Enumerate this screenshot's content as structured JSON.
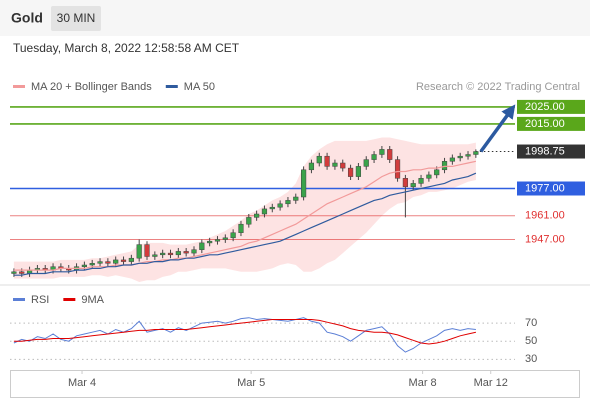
{
  "header": {
    "symbol": "Gold",
    "interval": "30 MIN",
    "timestamp": "Tuesday, March 8, 2022 12:58:58 AM CET"
  },
  "chart_data": [
    {
      "type": "candlestick",
      "note": "Research © 2022 Trading Central",
      "open": [
        1927,
        1928,
        1927,
        1929,
        1930,
        1929,
        1931,
        1930,
        1929,
        1931,
        1932,
        1933,
        1934,
        1933,
        1935,
        1934,
        1936,
        1944,
        1937,
        1938,
        1939,
        1938,
        1940,
        1939,
        1941,
        1945,
        1946,
        1947,
        1948,
        1951,
        1956,
        1960,
        1962,
        1965,
        1966,
        1968,
        1970,
        1972,
        1988,
        1992,
        1996,
        1990,
        1992,
        1989,
        1984,
        1990,
        1994,
        1997,
        2000,
        1994,
        1983,
        1978,
        1980,
        1983,
        1985,
        1988,
        1993,
        1995,
        1996,
        1997
      ],
      "high": [
        1930,
        1930,
        1931,
        1932,
        1932,
        1933,
        1933,
        1932,
        1933,
        1934,
        1935,
        1936,
        1936,
        1937,
        1937,
        1938,
        1947,
        1946,
        1940,
        1941,
        1941,
        1942,
        1942,
        1943,
        1947,
        1948,
        1949,
        1950,
        1953,
        1958,
        1962,
        1964,
        1967,
        1968,
        1970,
        1972,
        1974,
        1990,
        1994,
        1998,
        1998,
        1994,
        1994,
        1991,
        1992,
        1996,
        1999,
        2002,
        2002,
        1996,
        1985,
        1982,
        1985,
        1987,
        1990,
        1995,
        1997,
        1998,
        1999,
        2000
      ],
      "low": [
        1925,
        1925,
        1925,
        1927,
        1927,
        1927,
        1928,
        1927,
        1927,
        1929,
        1930,
        1931,
        1931,
        1931,
        1932,
        1932,
        1934,
        1935,
        1935,
        1936,
        1936,
        1936,
        1937,
        1937,
        1939,
        1943,
        1944,
        1945,
        1946,
        1949,
        1954,
        1958,
        1960,
        1963,
        1964,
        1966,
        1968,
        1970,
        1986,
        1990,
        1988,
        1988,
        1987,
        1982,
        1982,
        1988,
        1992,
        1995,
        1992,
        1981,
        1960,
        1976,
        1978,
        1981,
        1983,
        1986,
        1991,
        1993,
        1994,
        1995
      ],
      "close": [
        1928,
        1927,
        1929,
        1930,
        1929,
        1931,
        1930,
        1929,
        1931,
        1932,
        1933,
        1934,
        1933,
        1935,
        1934,
        1936,
        1944,
        1937,
        1938,
        1939,
        1938,
        1940,
        1939,
        1941,
        1945,
        1946,
        1947,
        1948,
        1951,
        1956,
        1960,
        1962,
        1965,
        1966,
        1968,
        1970,
        1972,
        1988,
        1992,
        1996,
        1990,
        1992,
        1989,
        1984,
        1990,
        1994,
        1997,
        2000,
        1994,
        1983,
        1978,
        1980,
        1983,
        1985,
        1988,
        1993,
        1995,
        1996,
        1997,
        1998.75
      ],
      "up_color": "#3aa34a",
      "down_color": "#d23c3c",
      "series": [
        {
          "name": "MA 20 + Bollinger Bands",
          "color": "#f29a9a",
          "band_color": "#fde3e3",
          "values": [
            1929,
            1929,
            1929,
            1929,
            1929,
            1929,
            1930,
            1930,
            1930,
            1930,
            1931,
            1931,
            1931,
            1932,
            1932,
            1932,
            1933,
            1934,
            1934,
            1935,
            1935,
            1936,
            1936,
            1937,
            1938,
            1939,
            1940,
            1941,
            1942,
            1943,
            1945,
            1946,
            1948,
            1950,
            1952,
            1954,
            1956,
            1959,
            1962,
            1965,
            1968,
            1970,
            1972,
            1974,
            1976,
            1978,
            1981,
            1984,
            1986,
            1987,
            1987,
            1988,
            1988,
            1989,
            1989,
            1990,
            1990,
            1991,
            1992,
            1993
          ],
          "upper": [
            1934,
            1934,
            1934,
            1934,
            1934,
            1934,
            1935,
            1935,
            1935,
            1935,
            1936,
            1936,
            1937,
            1938,
            1939,
            1940,
            1944,
            1945,
            1945,
            1945,
            1944,
            1944,
            1944,
            1945,
            1946,
            1948,
            1950,
            1952,
            1955,
            1958,
            1962,
            1964,
            1967,
            1970,
            1972,
            1975,
            1980,
            1990,
            1996,
            2000,
            2003,
            2005,
            2005,
            2005,
            2005,
            2005,
            2006,
            2007,
            2007,
            2006,
            2005,
            2004,
            2003,
            2003,
            2003,
            2003,
            2003,
            2003,
            2003,
            2004
          ],
          "lower": [
            1924,
            1924,
            1924,
            1924,
            1924,
            1924,
            1925,
            1925,
            1925,
            1925,
            1926,
            1926,
            1925,
            1926,
            1925,
            1924,
            1922,
            1923,
            1923,
            1925,
            1926,
            1928,
            1928,
            1929,
            1930,
            1930,
            1930,
            1930,
            1929,
            1928,
            1928,
            1928,
            1929,
            1930,
            1932,
            1933,
            1932,
            1928,
            1928,
            1930,
            1933,
            1935,
            1939,
            1943,
            1947,
            1951,
            1956,
            1961,
            1965,
            1968,
            1969,
            1972,
            1973,
            1975,
            1975,
            1976,
            1977,
            1979,
            1981,
            1982
          ]
        },
        {
          "name": "MA 50",
          "color": "#2f5b9e",
          "values": [
            1926,
            1926,
            1927,
            1927,
            1927,
            1928,
            1928,
            1928,
            1929,
            1929,
            1930,
            1930,
            1931,
            1931,
            1932,
            1932,
            1933,
            1933,
            1934,
            1934,
            1935,
            1935,
            1936,
            1936,
            1937,
            1938,
            1938,
            1939,
            1940,
            1941,
            1942,
            1943,
            1944,
            1945,
            1946,
            1948,
            1950,
            1952,
            1954,
            1956,
            1958,
            1960,
            1962,
            1964,
            1966,
            1968,
            1970,
            1971,
            1973,
            1974,
            1975,
            1976,
            1977,
            1978,
            1979,
            1980,
            1982,
            1983,
            1984,
            1986
          ]
        }
      ],
      "levels": [
        {
          "value": 2025,
          "label": "2025.00",
          "color": "#5aa71b",
          "style": "box"
        },
        {
          "value": 2015,
          "label": "2015.00",
          "color": "#5aa71b",
          "style": "box"
        },
        {
          "value": 1998.75,
          "label": "1998.75",
          "color": "#333333",
          "style": "dotted-box"
        },
        {
          "value": 1977,
          "label": "1977.00",
          "color": "#2f5fe0",
          "style": "box"
        },
        {
          "value": 1961,
          "label": "1961.00",
          "color": "#e03030",
          "style": "text"
        },
        {
          "value": 1947,
          "label": "1947.00",
          "color": "#e03030",
          "style": "text"
        }
      ],
      "arrow_color": "#2c5aa0",
      "xlim": [
        -0.5,
        64
      ],
      "xticks": [
        {
          "value": 8.7,
          "label": "Mar 4"
        },
        {
          "value": 30.3,
          "label": "Mar 5"
        },
        {
          "value": 52.2,
          "label": "Mar 8"
        },
        {
          "value": 60.9,
          "label": "Mar 12"
        }
      ],
      "ylim": [
        1922,
        2032
      ]
    },
    {
      "type": "line",
      "series": [
        {
          "name": "RSI",
          "color": "#5b7fd6",
          "values": [
            48,
            52,
            50,
            55,
            53,
            58,
            52,
            50,
            56,
            58,
            60,
            62,
            58,
            63,
            60,
            64,
            72,
            60,
            62,
            64,
            60,
            65,
            62,
            66,
            70,
            71,
            72,
            70,
            72,
            75,
            76,
            74,
            75,
            74,
            73,
            72,
            74,
            76,
            72,
            70,
            60,
            58,
            55,
            50,
            56,
            62,
            64,
            66,
            58,
            45,
            38,
            42,
            48,
            52,
            56,
            62,
            64,
            62,
            64,
            63
          ]
        },
        {
          "name": "9MA",
          "color": "#e00000",
          "values": [
            50,
            50,
            51,
            52,
            52,
            53,
            53,
            53,
            54,
            55,
            56,
            57,
            58,
            59,
            60,
            61,
            62,
            62,
            63,
            63,
            63,
            63,
            63,
            64,
            65,
            66,
            67,
            68,
            69,
            70,
            71,
            72,
            73,
            74,
            74,
            74,
            74,
            74,
            74,
            73,
            71,
            69,
            67,
            64,
            62,
            61,
            60,
            60,
            59,
            57,
            54,
            51,
            48,
            47,
            48,
            50,
            53,
            56,
            58,
            60
          ]
        }
      ],
      "xlim": [
        -0.5,
        64
      ],
      "ylim": [
        16,
        79
      ],
      "yticks": [
        30,
        50,
        70
      ],
      "grid": true
    }
  ]
}
